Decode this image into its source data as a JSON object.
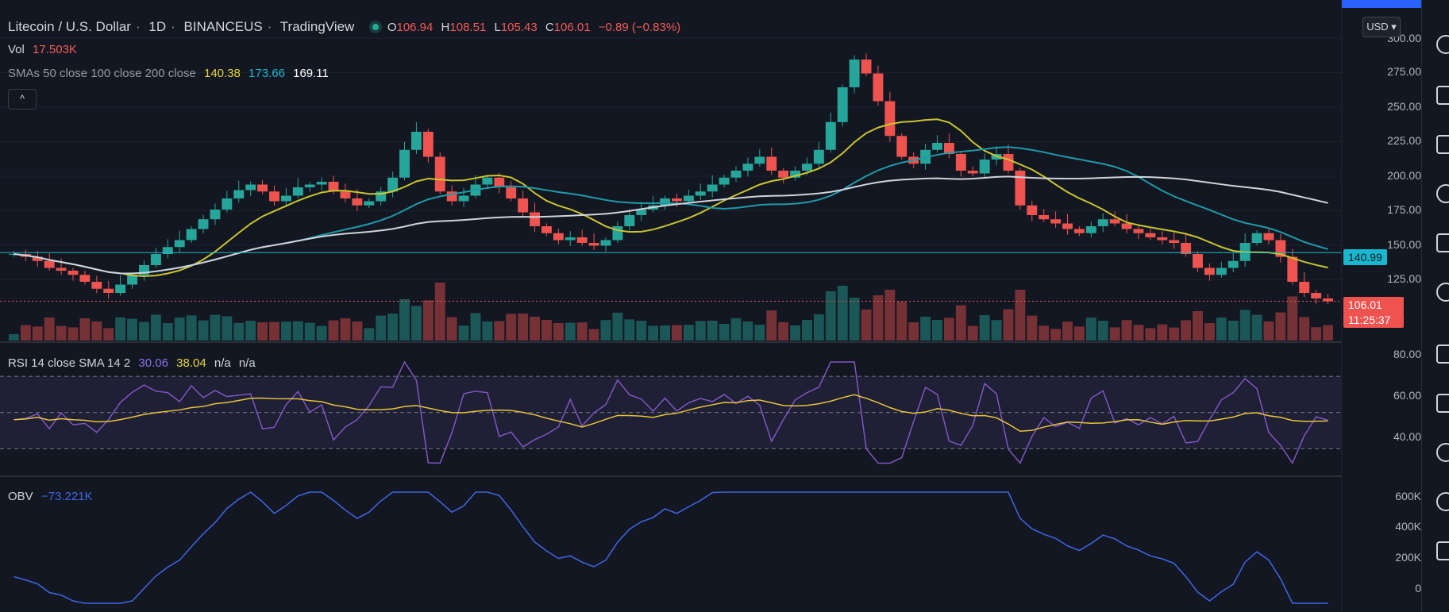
{
  "header": {
    "symbol": "Litecoin / U.S. Dollar",
    "interval": "1D",
    "exchange": "BINANCEUS",
    "source": "TradingView",
    "ohlc": {
      "o_label": "O",
      "o": "106.94",
      "h_label": "H",
      "h": "108.51",
      "l_label": "L",
      "l": "105.43",
      "c_label": "C",
      "c": "106.01",
      "change": "−0.89 (−0.83%)"
    }
  },
  "vol": {
    "label": "Vol",
    "value": "17.503K"
  },
  "sma": {
    "label": "SMAs 50 close 100 close 200 close",
    "v50": "140.38",
    "v100": "173.66",
    "v200": "169.11"
  },
  "collapse_glyph": "^",
  "currency_button": "USD ▾",
  "price_axis": {
    "ticks": [
      "300.00",
      "275.00",
      "250.00",
      "225.00",
      "200.00",
      "175.00",
      "150.00",
      "125.00"
    ],
    "crosshair_label": "140.99",
    "last_price": "106.01",
    "countdown": "11:25:37"
  },
  "rsi": {
    "label": "RSI 14 close SMA 14 2",
    "value": "30.06",
    "sma": "38.04",
    "extra1": "n/a",
    "extra2": "n/a",
    "ticks": [
      "80.00",
      "60.00",
      "40.00"
    ]
  },
  "obv": {
    "label": "OBV",
    "value": "−73.221K",
    "ticks": [
      "600K",
      "400K",
      "200K",
      "0"
    ]
  },
  "colors": {
    "bg": "#131722",
    "up": "#26a69a",
    "down": "#ef5350",
    "sma50": "#c9c52d",
    "sma100": "#1e9aa8",
    "sma200": "#d1d4dc",
    "rsi": "#7e57c2",
    "rsi_sma": "#e6c43b",
    "obv": "#3f66e6",
    "crosshair": "#19b8cf"
  },
  "chart_data": [
    {
      "type": "candlestick",
      "title": "Litecoin / U.S. Dollar",
      "interval": "1D",
      "ylim": [
        100,
        300
      ],
      "sample_close": [
        140,
        138,
        135,
        130,
        128,
        125,
        120,
        115,
        112,
        118,
        125,
        132,
        140,
        145,
        150,
        158,
        165,
        172,
        180,
        186,
        190,
        185,
        178,
        182,
        188,
        190,
        192,
        185,
        180,
        175,
        178,
        185,
        195,
        215,
        228,
        210,
        185,
        178,
        182,
        190,
        195,
        188,
        180,
        170,
        160,
        155,
        150,
        152,
        148,
        146,
        150,
        160,
        168,
        172,
        175,
        180,
        178,
        182,
        185,
        190,
        195,
        200,
        205,
        210,
        200,
        195,
        200,
        205,
        215,
        235,
        260,
        280,
        270,
        250,
        225,
        210,
        205,
        215,
        220,
        212,
        200,
        198,
        208,
        212,
        200,
        175,
        168,
        165,
        162,
        158,
        155,
        160,
        165,
        162,
        158,
        155,
        152,
        150,
        148,
        140,
        130,
        125,
        130,
        135,
        148,
        155,
        150,
        138,
        120,
        112,
        108,
        106
      ]
    },
    {
      "type": "line",
      "name": "SMA 50",
      "value": "140.38"
    },
    {
      "type": "line",
      "name": "SMA 100",
      "value": "173.66"
    },
    {
      "type": "line",
      "name": "SMA 200",
      "value": "169.11"
    },
    {
      "type": "line",
      "name": "RSI",
      "ylim": [
        20,
        85
      ],
      "value": "30.06"
    },
    {
      "type": "line",
      "name": "OBV",
      "ylim": [
        -100000,
        700000
      ],
      "value": "−73.221K"
    }
  ]
}
